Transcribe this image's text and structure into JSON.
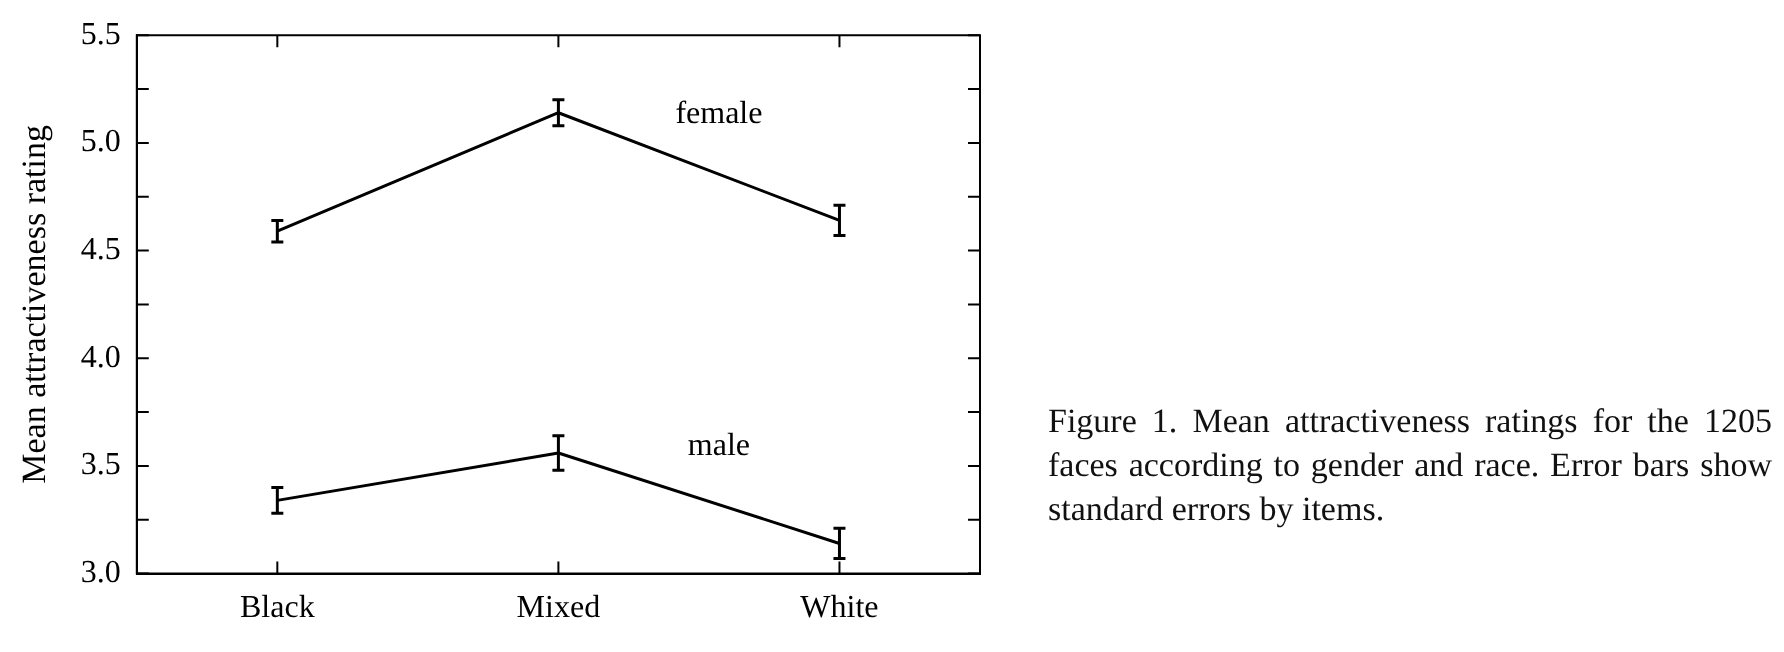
{
  "chart_data": {
    "type": "line",
    "ylabel": "Mean attractiveness rating",
    "categories": [
      "Black",
      "Mixed",
      "White"
    ],
    "series": [
      {
        "name": "female",
        "color": "#000000",
        "values": [
          4.59,
          5.14,
          4.64
        ],
        "errors": [
          0.05,
          0.06,
          0.07
        ]
      },
      {
        "name": "male",
        "color": "#000000",
        "values": [
          3.34,
          3.56,
          3.14
        ],
        "errors": [
          0.06,
          0.08,
          0.07
        ]
      }
    ],
    "ylim": [
      3.0,
      5.5
    ],
    "yticks": [
      {
        "value": 3.0,
        "label": "3.0"
      },
      {
        "value": 3.25,
        "label": null
      },
      {
        "value": 3.5,
        "label": "3.5"
      },
      {
        "value": 3.75,
        "label": null
      },
      {
        "value": 4.0,
        "label": "4.0"
      },
      {
        "value": 4.25,
        "label": null
      },
      {
        "value": 4.5,
        "label": "4.5"
      },
      {
        "value": 4.75,
        "label": null
      },
      {
        "value": 5.0,
        "label": "5.0"
      },
      {
        "value": 5.25,
        "label": null
      },
      {
        "value": 5.5,
        "label": "5.5"
      }
    ],
    "grid": false,
    "legend": false,
    "marker": "none",
    "line_style": "solid",
    "annotations": [
      "Figure 1. Mean attractiveness ratings for the 1205 faces according to gender and race. Error bars show standard errors by items."
    ]
  }
}
